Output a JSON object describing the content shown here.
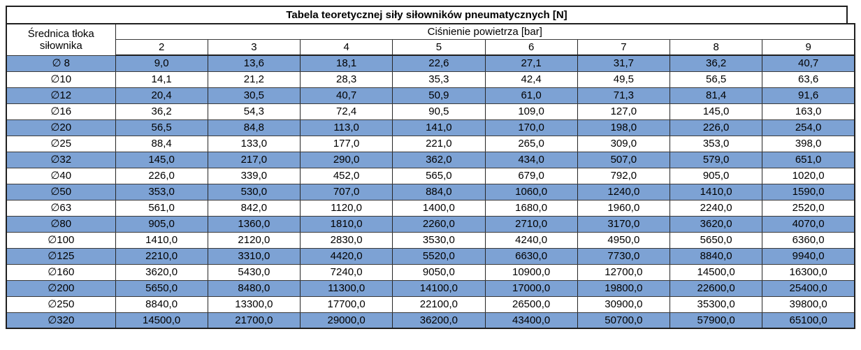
{
  "title": "Tabela teoretycznej siły siłowników pneumatycznych [N]",
  "colors": {
    "row_stripe": "#7da2d4",
    "border": "#1f1f1f",
    "text": "#000000",
    "background": "#ffffff"
  },
  "table": {
    "row_header": "Średnica tłoka siłownika",
    "col_group_header": "Ciśnienie powietrza [bar]",
    "pressures": [
      "2",
      "3",
      "4",
      "5",
      "6",
      "7",
      "8",
      "9"
    ],
    "rows": [
      {
        "diameter": "∅ 8",
        "values": [
          "9,0",
          "13,6",
          "18,1",
          "22,6",
          "27,1",
          "31,7",
          "36,2",
          "40,7"
        ]
      },
      {
        "diameter": "∅10",
        "values": [
          "14,1",
          "21,2",
          "28,3",
          "35,3",
          "42,4",
          "49,5",
          "56,5",
          "63,6"
        ]
      },
      {
        "diameter": "∅12",
        "values": [
          "20,4",
          "30,5",
          "40,7",
          "50,9",
          "61,0",
          "71,3",
          "81,4",
          "91,6"
        ]
      },
      {
        "diameter": "∅16",
        "values": [
          "36,2",
          "54,3",
          "72,4",
          "90,5",
          "109,0",
          "127,0",
          "145,0",
          "163,0"
        ]
      },
      {
        "diameter": "∅20",
        "values": [
          "56,5",
          "84,8",
          "113,0",
          "141,0",
          "170,0",
          "198,0",
          "226,0",
          "254,0"
        ]
      },
      {
        "diameter": "∅25",
        "values": [
          "88,4",
          "133,0",
          "177,0",
          "221,0",
          "265,0",
          "309,0",
          "353,0",
          "398,0"
        ]
      },
      {
        "diameter": "∅32",
        "values": [
          "145,0",
          "217,0",
          "290,0",
          "362,0",
          "434,0",
          "507,0",
          "579,0",
          "651,0"
        ]
      },
      {
        "diameter": "∅40",
        "values": [
          "226,0",
          "339,0",
          "452,0",
          "565,0",
          "679,0",
          "792,0",
          "905,0",
          "1020,0"
        ]
      },
      {
        "diameter": "∅50",
        "values": [
          "353,0",
          "530,0",
          "707,0",
          "884,0",
          "1060,0",
          "1240,0",
          "1410,0",
          "1590,0"
        ]
      },
      {
        "diameter": "∅63",
        "values": [
          "561,0",
          "842,0",
          "1120,0",
          "1400,0",
          "1680,0",
          "1960,0",
          "2240,0",
          "2520,0"
        ]
      },
      {
        "diameter": "∅80",
        "values": [
          "905,0",
          "1360,0",
          "1810,0",
          "2260,0",
          "2710,0",
          "3170,0",
          "3620,0",
          "4070,0"
        ]
      },
      {
        "diameter": "∅100",
        "values": [
          "1410,0",
          "2120,0",
          "2830,0",
          "3530,0",
          "4240,0",
          "4950,0",
          "5650,0",
          "6360,0"
        ]
      },
      {
        "diameter": "∅125",
        "values": [
          "2210,0",
          "3310,0",
          "4420,0",
          "5520,0",
          "6630,0",
          "7730,0",
          "8840,0",
          "9940,0"
        ]
      },
      {
        "diameter": "∅160",
        "values": [
          "3620,0",
          "5430,0",
          "7240,0",
          "9050,0",
          "10900,0",
          "12700,0",
          "14500,0",
          "16300,0"
        ]
      },
      {
        "diameter": "∅200",
        "values": [
          "5650,0",
          "8480,0",
          "11300,0",
          "14100,0",
          "17000,0",
          "19800,0",
          "22600,0",
          "25400,0"
        ]
      },
      {
        "diameter": "∅250",
        "values": [
          "8840,0",
          "13300,0",
          "17700,0",
          "22100,0",
          "26500,0",
          "30900,0",
          "35300,0",
          "39800,0"
        ]
      },
      {
        "diameter": "∅320",
        "values": [
          "14500,0",
          "21700,0",
          "29000,0",
          "36200,0",
          "43400,0",
          "50700,0",
          "57900,0",
          "65100,0"
        ]
      }
    ]
  }
}
